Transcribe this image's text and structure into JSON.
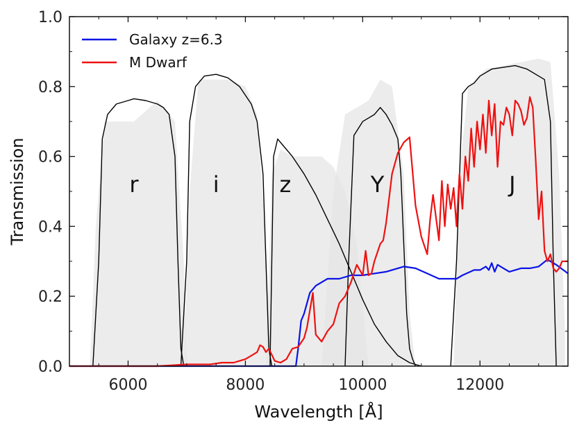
{
  "chart_data": {
    "type": "line",
    "xlabel": "Wavelength [Å]",
    "ylabel": "Transmission",
    "xlim": [
      5000,
      13500
    ],
    "ylim": [
      0.0,
      1.0
    ],
    "x_ticks": [
      6000,
      8000,
      10000,
      12000
    ],
    "y_ticks": [
      0.0,
      0.2,
      0.4,
      0.6,
      0.8,
      1.0
    ],
    "x_tick_labels": [
      "6000",
      "8000",
      "10000",
      "12000"
    ],
    "y_tick_labels": [
      "0.0",
      "0.2",
      "0.4",
      "0.6",
      "0.8",
      "1.0"
    ],
    "grid": false,
    "legend_placement": "top-left",
    "colors": {
      "galaxy": "#0a14e6",
      "dwarf": "#ee1111",
      "filter": "#000000",
      "shade": "#e6e6e6"
    },
    "series": [
      {
        "name": "Galaxy z=6.3",
        "color": "#0a14e6",
        "x": [
          5000,
          8800,
          8860,
          8900,
          8950,
          9000,
          9100,
          9200,
          9400,
          9600,
          9800,
          10000,
          10200,
          10400,
          10600,
          10700,
          10900,
          11100,
          11300,
          11600,
          11700,
          11900,
          12000,
          12100,
          12150,
          12200,
          12250,
          12300,
          12400,
          12500,
          12600,
          12700,
          12850,
          13000,
          13150,
          13300,
          13500
        ],
        "y": [
          0.0,
          0.0,
          0.0,
          0.05,
          0.13,
          0.15,
          0.21,
          0.23,
          0.25,
          0.25,
          0.26,
          0.26,
          0.265,
          0.27,
          0.28,
          0.285,
          0.28,
          0.265,
          0.25,
          0.25,
          0.26,
          0.275,
          0.275,
          0.285,
          0.275,
          0.295,
          0.27,
          0.29,
          0.28,
          0.27,
          0.275,
          0.28,
          0.28,
          0.285,
          0.305,
          0.29,
          0.265
        ]
      },
      {
        "name": "M Dwarf",
        "color": "#ee1111",
        "x": [
          5000,
          6500,
          7000,
          7400,
          7600,
          7800,
          7900,
          8000,
          8100,
          8200,
          8250,
          8300,
          8350,
          8400,
          8500,
          8600,
          8700,
          8800,
          8900,
          9000,
          9050,
          9100,
          9150,
          9200,
          9300,
          9400,
          9500,
          9600,
          9700,
          9800,
          9900,
          10000,
          10050,
          10100,
          10150,
          10200,
          10300,
          10350,
          10400,
          10500,
          10600,
          10700,
          10800,
          10900,
          11000,
          11100,
          11150,
          11200,
          11300,
          11350,
          11400,
          11450,
          11500,
          11550,
          11600,
          11650,
          11700,
          11750,
          11800,
          11850,
          11900,
          11950,
          12000,
          12050,
          12100,
          12150,
          12200,
          12250,
          12300,
          12350,
          12400,
          12450,
          12500,
          12550,
          12600,
          12650,
          12700,
          12750,
          12800,
          12850,
          12900,
          12950,
          13000,
          13050,
          13100,
          13150,
          13200,
          13250,
          13300,
          13350,
          13400,
          13500
        ],
        "y": [
          0.0,
          0.0,
          0.005,
          0.005,
          0.01,
          0.01,
          0.015,
          0.02,
          0.03,
          0.04,
          0.06,
          0.055,
          0.04,
          0.05,
          0.015,
          0.01,
          0.02,
          0.05,
          0.055,
          0.08,
          0.11,
          0.16,
          0.21,
          0.09,
          0.07,
          0.1,
          0.12,
          0.18,
          0.2,
          0.24,
          0.29,
          0.26,
          0.33,
          0.26,
          0.265,
          0.3,
          0.35,
          0.36,
          0.41,
          0.55,
          0.61,
          0.64,
          0.655,
          0.46,
          0.37,
          0.32,
          0.42,
          0.49,
          0.36,
          0.53,
          0.4,
          0.52,
          0.45,
          0.51,
          0.4,
          0.55,
          0.45,
          0.6,
          0.53,
          0.68,
          0.57,
          0.7,
          0.62,
          0.72,
          0.61,
          0.76,
          0.66,
          0.75,
          0.57,
          0.7,
          0.69,
          0.74,
          0.72,
          0.66,
          0.76,
          0.75,
          0.73,
          0.69,
          0.71,
          0.77,
          0.74,
          0.59,
          0.42,
          0.5,
          0.33,
          0.3,
          0.32,
          0.28,
          0.27,
          0.28,
          0.3,
          0.3
        ]
      }
    ],
    "filters": [
      {
        "label": "r",
        "label_x": 6100,
        "label_y": 0.52,
        "x": [
          5400,
          5500,
          5560,
          5650,
          5800,
          6000,
          6100,
          6300,
          6500,
          6600,
          6700,
          6800,
          6850,
          6900,
          6950
        ],
        "y": [
          0.0,
          0.3,
          0.65,
          0.72,
          0.75,
          0.76,
          0.765,
          0.76,
          0.75,
          0.74,
          0.72,
          0.6,
          0.3,
          0.05,
          0.0
        ]
      },
      {
        "label": "i",
        "label_x": 7500,
        "label_y": 0.52,
        "x": [
          6900,
          7000,
          7050,
          7150,
          7300,
          7500,
          7700,
          7900,
          8100,
          8200,
          8300,
          8350,
          8400,
          8450
        ],
        "y": [
          0.0,
          0.3,
          0.7,
          0.8,
          0.83,
          0.835,
          0.825,
          0.8,
          0.75,
          0.7,
          0.55,
          0.3,
          0.05,
          0.0
        ]
      },
      {
        "label": "z",
        "label_x": 8680,
        "label_y": 0.52,
        "x": [
          8420,
          8480,
          8550,
          8650,
          8800,
          9000,
          9200,
          9400,
          9600,
          9800,
          10000,
          10200,
          10400,
          10600,
          10800,
          11000
        ],
        "y": [
          0.0,
          0.6,
          0.65,
          0.63,
          0.6,
          0.55,
          0.49,
          0.42,
          0.35,
          0.27,
          0.19,
          0.12,
          0.07,
          0.03,
          0.01,
          0.0
        ]
      },
      {
        "label": "Y",
        "label_x": 10250,
        "label_y": 0.52,
        "x": [
          9700,
          9760,
          9850,
          10000,
          10100,
          10200,
          10300,
          10400,
          10500,
          10600,
          10650,
          10700,
          10750,
          10800,
          10850,
          10900
        ],
        "y": [
          0.0,
          0.3,
          0.66,
          0.7,
          0.71,
          0.72,
          0.74,
          0.72,
          0.69,
          0.65,
          0.55,
          0.35,
          0.15,
          0.05,
          0.02,
          0.0
        ]
      },
      {
        "label": "J",
        "label_x": 12550,
        "label_y": 0.52,
        "x": [
          11500,
          11600,
          11700,
          11800,
          11900,
          12000,
          12200,
          12400,
          12600,
          12800,
          13000,
          13100,
          13200,
          13250,
          13300
        ],
        "y": [
          0.0,
          0.3,
          0.78,
          0.8,
          0.81,
          0.83,
          0.85,
          0.855,
          0.86,
          0.85,
          0.83,
          0.82,
          0.7,
          0.3,
          0.0
        ]
      }
    ],
    "shaded_filters": [
      {
        "x": [
          5350,
          5450,
          5600,
          5800,
          6100,
          6500,
          6800,
          6950,
          7000
        ],
        "y": [
          0.0,
          0.4,
          0.7,
          0.7,
          0.7,
          0.76,
          0.7,
          0.3,
          0.0
        ]
      },
      {
        "x": [
          6950,
          7050,
          7200,
          7400,
          7700,
          8000,
          8200,
          8350,
          8450
        ],
        "y": [
          0.0,
          0.5,
          0.82,
          0.82,
          0.82,
          0.8,
          0.72,
          0.35,
          0.0
        ]
      },
      {
        "x": [
          8350,
          8450,
          8600,
          8800,
          9100,
          9300,
          9500,
          9700,
          9900,
          10100
        ],
        "y": [
          0.0,
          0.55,
          0.62,
          0.6,
          0.6,
          0.6,
          0.57,
          0.5,
          0.35,
          0.0
        ]
      },
      {
        "x": [
          9300,
          9500,
          9700,
          9900,
          10100,
          10300,
          10500,
          10700,
          10800,
          10900
        ],
        "y": [
          0.0,
          0.5,
          0.72,
          0.74,
          0.76,
          0.82,
          0.8,
          0.55,
          0.15,
          0.0
        ]
      },
      {
        "x": [
          11550,
          11650,
          11800,
          12100,
          12400,
          12700,
          13000,
          13200,
          13350,
          13450
        ],
        "y": [
          0.0,
          0.55,
          0.8,
          0.85,
          0.86,
          0.87,
          0.88,
          0.87,
          0.55,
          0.1
        ]
      }
    ]
  }
}
